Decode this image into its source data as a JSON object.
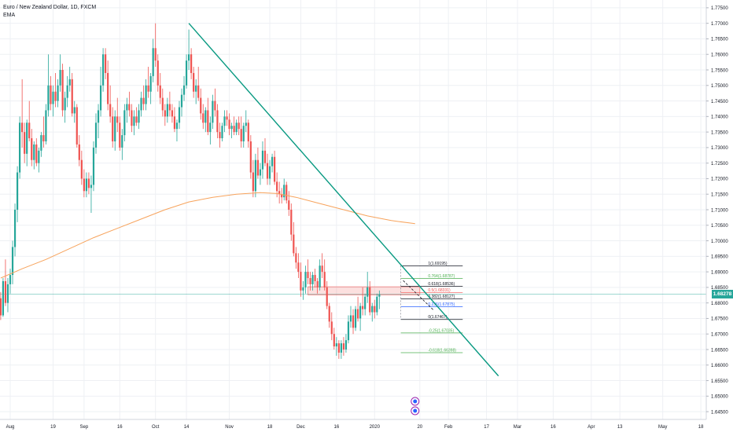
{
  "header": {
    "symbol_line": "Euro / New Zealand Dollar, 1D, FXCM",
    "indicator": "EMA"
  },
  "colors": {
    "up": "#26a69a",
    "down": "#ef5350",
    "ema": "#f7a35c",
    "trendline": "#089981",
    "grid": "#eef0f4",
    "axis_text": "#131722",
    "fib_green": "#4caf50"
  },
  "chart_data": {
    "type": "candlestick",
    "price_axis": {
      "range": [
        1.6425,
        1.7775
      ],
      "ticks": [
        "1.77500",
        "1.77000",
        "1.76500",
        "1.76000",
        "1.75500",
        "1.75000",
        "1.74500",
        "1.74000",
        "1.73500",
        "1.73000",
        "1.72500",
        "1.72000",
        "1.71500",
        "1.71000",
        "1.70500",
        "1.70000",
        "1.69500",
        "1.69000",
        "1.68500",
        "1.68000",
        "1.67500",
        "1.67000",
        "1.66500",
        "1.66000",
        "1.65500",
        "1.65000",
        "1.64500"
      ]
    },
    "time_axis": {
      "day_range": [
        0,
        250
      ],
      "labels": [
        {
          "text": "Aug",
          "day": 0
        },
        {
          "text": "19",
          "day": 18
        },
        {
          "text": "Sep",
          "day": 31
        },
        {
          "text": "16",
          "day": 46
        },
        {
          "text": "Oct",
          "day": 61
        },
        {
          "text": "14",
          "day": 74
        },
        {
          "text": "Nov",
          "day": 92
        },
        {
          "text": "18",
          "day": 109
        },
        {
          "text": "Dec",
          "day": 122
        },
        {
          "text": "16",
          "day": 137
        },
        {
          "text": "2020",
          "day": 153
        },
        {
          "text": "20",
          "day": 172
        },
        {
          "text": "Feb",
          "day": 184
        },
        {
          "text": "17",
          "day": 200
        },
        {
          "text": "Mar",
          "day": 213
        },
        {
          "text": "16",
          "day": 228
        },
        {
          "text": "Apr",
          "day": 244
        },
        {
          "text": "13",
          "day": 256
        },
        {
          "text": "May",
          "day": 274
        },
        {
          "text": "18",
          "day": 290
        }
      ]
    },
    "last_price": "1.68278",
    "ema": [
      [
        -4,
        1.688
      ],
      [
        5,
        1.691
      ],
      [
        15,
        1.694
      ],
      [
        25,
        1.6975
      ],
      [
        35,
        1.701
      ],
      [
        45,
        1.704
      ],
      [
        55,
        1.707
      ],
      [
        65,
        1.71
      ],
      [
        75,
        1.7125
      ],
      [
        85,
        1.714
      ],
      [
        95,
        1.715
      ],
      [
        105,
        1.7155
      ],
      [
        112,
        1.7152
      ],
      [
        120,
        1.714
      ],
      [
        130,
        1.712
      ],
      [
        140,
        1.71
      ],
      [
        150,
        1.708
      ],
      [
        160,
        1.7065
      ],
      [
        170,
        1.7055
      ]
    ],
    "trendline": [
      [
        75,
        1.77
      ],
      [
        205,
        1.6565
      ]
    ],
    "dashed_line": [
      [
        165,
        1.6872
      ],
      [
        178,
        1.6775
      ]
    ],
    "resistance_zone": {
      "from_day": 125,
      "to_day": 172,
      "top": 1.6852,
      "bottom": 1.6826
    },
    "fib_levels": [
      {
        "label": "1(1.69195)",
        "price": 1.69195,
        "color": "#131722"
      },
      {
        "label": "0.764(1.68787)",
        "price": 1.68787,
        "color": "#4caf50"
      },
      {
        "label": "0.618(1.68536)",
        "price": 1.68536,
        "color": "#131722"
      },
      {
        "label": "0.5(1.68331)",
        "price": 1.68331,
        "color": "#ef5350"
      },
      {
        "label": "0.382(1.68127)",
        "price": 1.68127,
        "color": "#131722"
      },
      {
        "label": "0.236(1.67875)",
        "price": 1.67875,
        "color": "#2962ff"
      },
      {
        "label": "0(1.67467)",
        "price": 1.67467,
        "color": "#131722"
      },
      {
        "label": "-0.25(1.67035)",
        "price": 1.67035,
        "color": "#4caf50"
      },
      {
        "label": "-0.618(1.66398)",
        "price": 1.66398,
        "color": "#4caf50"
      }
    ],
    "candles": [
      [
        -4,
        1.6815,
        1.6835,
        1.6745,
        1.676
      ],
      [
        -3,
        1.676,
        1.688,
        1.6755,
        1.687
      ],
      [
        -2,
        1.687,
        1.694,
        1.679,
        1.68
      ],
      [
        -1,
        1.68,
        1.688,
        1.677,
        1.686
      ],
      [
        0,
        1.686,
        1.691,
        1.683,
        1.689
      ],
      [
        1,
        1.689,
        1.7,
        1.686,
        1.698
      ],
      [
        2,
        1.698,
        1.712,
        1.695,
        1.71
      ],
      [
        3,
        1.71,
        1.724,
        1.706,
        1.722
      ],
      [
        4,
        1.722,
        1.74,
        1.72,
        1.738
      ],
      [
        5,
        1.738,
        1.752,
        1.73,
        1.735
      ],
      [
        6,
        1.735,
        1.738,
        1.725,
        1.728
      ],
      [
        7,
        1.728,
        1.739,
        1.724,
        1.738
      ],
      [
        8,
        1.738,
        1.745,
        1.732,
        1.733
      ],
      [
        9,
        1.733,
        1.736,
        1.724,
        1.726
      ],
      [
        10,
        1.726,
        1.732,
        1.723,
        1.731
      ],
      [
        11,
        1.731,
        1.733,
        1.724,
        1.725
      ],
      [
        12,
        1.725,
        1.73,
        1.722,
        1.729
      ],
      [
        13,
        1.729,
        1.735,
        1.727,
        1.734
      ],
      [
        14,
        1.734,
        1.74,
        1.73,
        1.732
      ],
      [
        15,
        1.732,
        1.744,
        1.731,
        1.742
      ],
      [
        16,
        1.742,
        1.76,
        1.74,
        1.75
      ],
      [
        17,
        1.75,
        1.753,
        1.742,
        1.744
      ],
      [
        18,
        1.744,
        1.75,
        1.74,
        1.748
      ],
      [
        19,
        1.748,
        1.754,
        1.743,
        1.745
      ],
      [
        20,
        1.745,
        1.752,
        1.743,
        1.75
      ],
      [
        21,
        1.75,
        1.76,
        1.748,
        1.755
      ],
      [
        22,
        1.755,
        1.757,
        1.74,
        1.742
      ],
      [
        23,
        1.742,
        1.748,
        1.738,
        1.746
      ],
      [
        24,
        1.746,
        1.753,
        1.743,
        1.75
      ],
      [
        25,
        1.75,
        1.756,
        1.748,
        1.752
      ],
      [
        26,
        1.752,
        1.754,
        1.74,
        1.741
      ],
      [
        27,
        1.741,
        1.745,
        1.738,
        1.743
      ],
      [
        28,
        1.743,
        1.744,
        1.73,
        1.731
      ],
      [
        29,
        1.731,
        1.734,
        1.724,
        1.726
      ],
      [
        30,
        1.726,
        1.729,
        1.718,
        1.72
      ],
      [
        31,
        1.72,
        1.723,
        1.714,
        1.716
      ],
      [
        32,
        1.716,
        1.722,
        1.714,
        1.72
      ],
      [
        33,
        1.72,
        1.722,
        1.715,
        1.717
      ],
      [
        34,
        1.717,
        1.721,
        1.709,
        1.718
      ],
      [
        35,
        1.718,
        1.732,
        1.716,
        1.73
      ],
      [
        36,
        1.73,
        1.741,
        1.728,
        1.738
      ],
      [
        37,
        1.738,
        1.744,
        1.733,
        1.742
      ],
      [
        38,
        1.742,
        1.756,
        1.74,
        1.75
      ],
      [
        39,
        1.75,
        1.762,
        1.748,
        1.76
      ],
      [
        40,
        1.76,
        1.762,
        1.752,
        1.754
      ],
      [
        41,
        1.754,
        1.758,
        1.742,
        1.744
      ],
      [
        42,
        1.744,
        1.75,
        1.738,
        1.74
      ],
      [
        43,
        1.74,
        1.743,
        1.73,
        1.732
      ],
      [
        44,
        1.732,
        1.742,
        1.729,
        1.74
      ],
      [
        45,
        1.74,
        1.746,
        1.735,
        1.738
      ],
      [
        46,
        1.738,
        1.74,
        1.729,
        1.73
      ],
      [
        47,
        1.73,
        1.736,
        1.726,
        1.734
      ],
      [
        48,
        1.734,
        1.744,
        1.732,
        1.742
      ],
      [
        49,
        1.742,
        1.746,
        1.738,
        1.744
      ],
      [
        50,
        1.744,
        1.748,
        1.74,
        1.742
      ],
      [
        51,
        1.742,
        1.744,
        1.735,
        1.737
      ],
      [
        52,
        1.737,
        1.742,
        1.734,
        1.74
      ],
      [
        53,
        1.74,
        1.743,
        1.737,
        1.738
      ],
      [
        54,
        1.738,
        1.744,
        1.736,
        1.742
      ],
      [
        55,
        1.742,
        1.748,
        1.74,
        1.746
      ],
      [
        56,
        1.746,
        1.75,
        1.742,
        1.744
      ],
      [
        57,
        1.744,
        1.752,
        1.742,
        1.75
      ],
      [
        58,
        1.75,
        1.756,
        1.746,
        1.748
      ],
      [
        59,
        1.748,
        1.754,
        1.744,
        1.753
      ],
      [
        60,
        1.753,
        1.765,
        1.751,
        1.762
      ],
      [
        61,
        1.762,
        1.77,
        1.756,
        1.758
      ],
      [
        62,
        1.758,
        1.76,
        1.748,
        1.75
      ],
      [
        63,
        1.75,
        1.754,
        1.744,
        1.746
      ],
      [
        64,
        1.746,
        1.749,
        1.74,
        1.742
      ],
      [
        65,
        1.742,
        1.744,
        1.737,
        1.74
      ],
      [
        66,
        1.74,
        1.746,
        1.738,
        1.744
      ],
      [
        67,
        1.744,
        1.748,
        1.74,
        1.742
      ],
      [
        68,
        1.742,
        1.744,
        1.738,
        1.74
      ],
      [
        69,
        1.74,
        1.743,
        1.735,
        1.736
      ],
      [
        70,
        1.736,
        1.739,
        1.732,
        1.738
      ],
      [
        71,
        1.738,
        1.745,
        1.736,
        1.743
      ],
      [
        72,
        1.743,
        1.749,
        1.74,
        1.747
      ],
      [
        73,
        1.747,
        1.753,
        1.745,
        1.75
      ],
      [
        74,
        1.75,
        1.76,
        1.749,
        1.758
      ],
      [
        75,
        1.758,
        1.768,
        1.755,
        1.76
      ],
      [
        76,
        1.76,
        1.762,
        1.752,
        1.754
      ],
      [
        77,
        1.754,
        1.756,
        1.746,
        1.748
      ],
      [
        78,
        1.748,
        1.752,
        1.744,
        1.75
      ],
      [
        79,
        1.75,
        1.756,
        1.745,
        1.746
      ],
      [
        80,
        1.746,
        1.749,
        1.739,
        1.741
      ],
      [
        81,
        1.741,
        1.744,
        1.736,
        1.738
      ],
      [
        82,
        1.738,
        1.743,
        1.735,
        1.742
      ],
      [
        83,
        1.742,
        1.746,
        1.734,
        1.735
      ],
      [
        84,
        1.735,
        1.74,
        1.731,
        1.738
      ],
      [
        85,
        1.738,
        1.747,
        1.736,
        1.745
      ],
      [
        86,
        1.745,
        1.749,
        1.74,
        1.742
      ],
      [
        87,
        1.742,
        1.744,
        1.733,
        1.735
      ],
      [
        88,
        1.735,
        1.738,
        1.73,
        1.733
      ],
      [
        89,
        1.733,
        1.738,
        1.732,
        1.737
      ],
      [
        90,
        1.737,
        1.742,
        1.735,
        1.74
      ],
      [
        91,
        1.74,
        1.742,
        1.737,
        1.739
      ],
      [
        92,
        1.739,
        1.741,
        1.734,
        1.736
      ],
      [
        93,
        1.736,
        1.738,
        1.733,
        1.737
      ],
      [
        94,
        1.737,
        1.74,
        1.734,
        1.735
      ],
      [
        95,
        1.735,
        1.739,
        1.734,
        1.738
      ],
      [
        96,
        1.738,
        1.74,
        1.734,
        1.736
      ],
      [
        97,
        1.736,
        1.74,
        1.73,
        1.732
      ],
      [
        98,
        1.732,
        1.738,
        1.73,
        1.737
      ],
      [
        99,
        1.737,
        1.742,
        1.735,
        1.738
      ],
      [
        100,
        1.738,
        1.739,
        1.73,
        1.732
      ],
      [
        101,
        1.732,
        1.734,
        1.72,
        1.722
      ],
      [
        102,
        1.722,
        1.726,
        1.714,
        1.716
      ],
      [
        103,
        1.716,
        1.728,
        1.714,
        1.726
      ],
      [
        104,
        1.726,
        1.73,
        1.72,
        1.721
      ],
      [
        105,
        1.721,
        1.725,
        1.718,
        1.723
      ],
      [
        106,
        1.723,
        1.732,
        1.72,
        1.729
      ],
      [
        107,
        1.729,
        1.733,
        1.724,
        1.725
      ],
      [
        108,
        1.725,
        1.728,
        1.718,
        1.72
      ],
      [
        109,
        1.72,
        1.726,
        1.718,
        1.724
      ],
      [
        110,
        1.724,
        1.728,
        1.722,
        1.727
      ],
      [
        111,
        1.727,
        1.729,
        1.718,
        1.719
      ],
      [
        112,
        1.719,
        1.722,
        1.714,
        1.716
      ],
      [
        113,
        1.716,
        1.719,
        1.712,
        1.715
      ],
      [
        114,
        1.715,
        1.717,
        1.712,
        1.714
      ],
      [
        115,
        1.714,
        1.72,
        1.713,
        1.718
      ],
      [
        116,
        1.718,
        1.719,
        1.712,
        1.713
      ],
      [
        117,
        1.713,
        1.716,
        1.708,
        1.71
      ],
      [
        118,
        1.71,
        1.712,
        1.7,
        1.702
      ],
      [
        119,
        1.702,
        1.706,
        1.695,
        1.696
      ],
      [
        120,
        1.696,
        1.698,
        1.691,
        1.693
      ],
      [
        121,
        1.693,
        1.696,
        1.688,
        1.69
      ],
      [
        122,
        1.69,
        1.693,
        1.682,
        1.684
      ],
      [
        123,
        1.684,
        1.687,
        1.681,
        1.685
      ],
      [
        124,
        1.685,
        1.692,
        1.683,
        1.69
      ],
      [
        125,
        1.69,
        1.694,
        1.686,
        1.688
      ],
      [
        126,
        1.688,
        1.69,
        1.684,
        1.686
      ],
      [
        127,
        1.686,
        1.69,
        1.684,
        1.689
      ],
      [
        128,
        1.689,
        1.691,
        1.685,
        1.687
      ],
      [
        129,
        1.687,
        1.688,
        1.683,
        1.685
      ],
      [
        130,
        1.685,
        1.694,
        1.684,
        1.692
      ],
      [
        131,
        1.692,
        1.696,
        1.688,
        1.69
      ],
      [
        132,
        1.69,
        1.694,
        1.684,
        1.685
      ],
      [
        133,
        1.685,
        1.687,
        1.678,
        1.679
      ],
      [
        134,
        1.679,
        1.68,
        1.672,
        1.674
      ],
      [
        135,
        1.674,
        1.677,
        1.668,
        1.67
      ],
      [
        136,
        1.67,
        1.672,
        1.665,
        1.666
      ],
      [
        137,
        1.666,
        1.669,
        1.663,
        1.667
      ],
      [
        138,
        1.667,
        1.668,
        1.662,
        1.664
      ],
      [
        139,
        1.664,
        1.668,
        1.662,
        1.667
      ],
      [
        140,
        1.667,
        1.669,
        1.663,
        1.665
      ],
      [
        141,
        1.665,
        1.67,
        1.664,
        1.668
      ],
      [
        142,
        1.668,
        1.676,
        1.667,
        1.674
      ],
      [
        143,
        1.674,
        1.679,
        1.672,
        1.676
      ],
      [
        144,
        1.676,
        1.678,
        1.67,
        1.672
      ],
      [
        145,
        1.672,
        1.679,
        1.671,
        1.678
      ],
      [
        146,
        1.678,
        1.682,
        1.674,
        1.675
      ],
      [
        147,
        1.675,
        1.68,
        1.671,
        1.679
      ],
      [
        148,
        1.679,
        1.685,
        1.676,
        1.678
      ],
      [
        149,
        1.678,
        1.683,
        1.676,
        1.682
      ],
      [
        150,
        1.682,
        1.69,
        1.68,
        1.685
      ],
      [
        151,
        1.685,
        1.687,
        1.676,
        1.677
      ],
      [
        152,
        1.677,
        1.68,
        1.674,
        1.679
      ],
      [
        153,
        1.679,
        1.681,
        1.675,
        1.677
      ],
      [
        154,
        1.677,
        1.683,
        1.676,
        1.682
      ],
      [
        155,
        1.682,
        1.684,
        1.678,
        1.6828
      ]
    ]
  }
}
